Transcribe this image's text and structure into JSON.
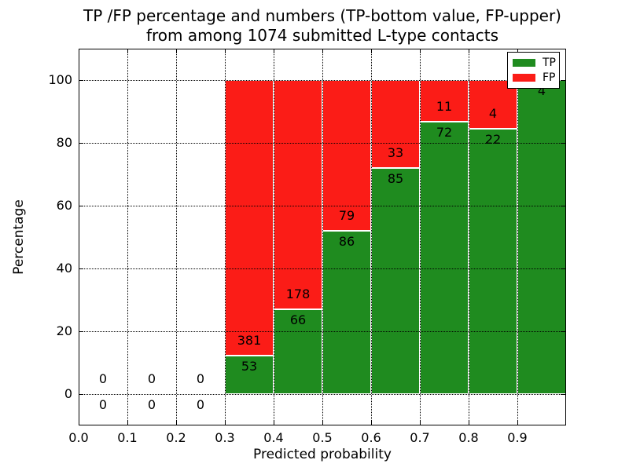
{
  "chart_data": {
    "type": "bar",
    "stacked": true,
    "normalized_to_percent": true,
    "title_line1": "TP /FP percentage and numbers (TP-bottom value, FP-upper)",
    "title_line2": "from among 1074 submitted L-type contacts",
    "total_contacts": 1074,
    "xlabel": "Predicted probability",
    "ylabel": "Percentage",
    "xlim": [
      0.0,
      1.0
    ],
    "ylim": [
      -10,
      110
    ],
    "bar_width": 0.1,
    "grid": true,
    "xticks": [
      {
        "value": 0.0,
        "label": "0.0"
      },
      {
        "value": 0.1,
        "label": "0.1"
      },
      {
        "value": 0.2,
        "label": "0.2"
      },
      {
        "value": 0.3,
        "label": "0.3"
      },
      {
        "value": 0.4,
        "label": "0.4"
      },
      {
        "value": 0.5,
        "label": "0.5"
      },
      {
        "value": 0.6,
        "label": "0.6"
      },
      {
        "value": 0.7,
        "label": "0.7"
      },
      {
        "value": 0.8,
        "label": "0.8"
      },
      {
        "value": 0.9,
        "label": "0.9"
      }
    ],
    "yticks": [
      {
        "value": 0,
        "label": "0"
      },
      {
        "value": 20,
        "label": "20"
      },
      {
        "value": 40,
        "label": "40"
      },
      {
        "value": 60,
        "label": "60"
      },
      {
        "value": 80,
        "label": "80"
      },
      {
        "value": 100,
        "label": "100"
      }
    ],
    "bins": [
      {
        "x_start": 0.0,
        "x_end": 0.1,
        "tp": 0,
        "fp": 0,
        "tp_label": "0",
        "fp_label": "0",
        "has_bar": false
      },
      {
        "x_start": 0.1,
        "x_end": 0.2,
        "tp": 0,
        "fp": 0,
        "tp_label": "0",
        "fp_label": "0",
        "has_bar": false
      },
      {
        "x_start": 0.2,
        "x_end": 0.3,
        "tp": 0,
        "fp": 0,
        "tp_label": "0",
        "fp_label": "0",
        "has_bar": false
      },
      {
        "x_start": 0.3,
        "x_end": 0.4,
        "tp": 53,
        "fp": 381,
        "tp_label": "53",
        "fp_label": "381",
        "has_bar": true
      },
      {
        "x_start": 0.4,
        "x_end": 0.5,
        "tp": 66,
        "fp": 178,
        "tp_label": "66",
        "fp_label": "178",
        "has_bar": true
      },
      {
        "x_start": 0.5,
        "x_end": 0.6,
        "tp": 86,
        "fp": 79,
        "tp_label": "86",
        "fp_label": "79",
        "has_bar": true
      },
      {
        "x_start": 0.6,
        "x_end": 0.7,
        "tp": 85,
        "fp": 33,
        "tp_label": "85",
        "fp_label": "33",
        "has_bar": true
      },
      {
        "x_start": 0.7,
        "x_end": 0.8,
        "tp": 72,
        "fp": 11,
        "tp_label": "72",
        "fp_label": "11",
        "has_bar": true
      },
      {
        "x_start": 0.8,
        "x_end": 0.9,
        "tp": 22,
        "fp": 4,
        "tp_label": "22",
        "fp_label": "4",
        "has_bar": true
      },
      {
        "x_start": 0.9,
        "x_end": 1.0,
        "tp": 4,
        "fp": 0,
        "tp_label": "4",
        "fp_label": "",
        "has_bar": true
      }
    ],
    "legend": {
      "position": "upper-right",
      "entries": [
        {
          "label": "TP",
          "color": "#1f8b1f"
        },
        {
          "label": "FP",
          "color": "#fb1c17"
        }
      ]
    },
    "colors": {
      "tp": "#1f8b1f",
      "fp": "#fb1c17",
      "grid": "#000000",
      "frame": "#000000",
      "bar_edge": "#ffffff",
      "background": "#ffffff",
      "text": "#000000"
    }
  }
}
